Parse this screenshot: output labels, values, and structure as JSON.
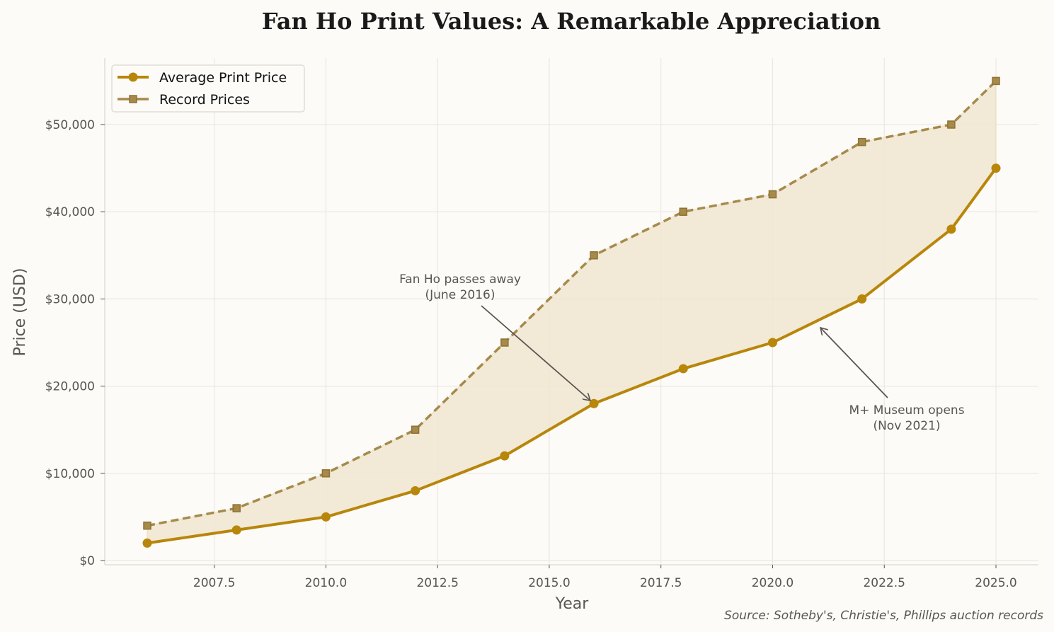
{
  "chart_data": {
    "type": "line",
    "title": "Fan Ho Print Values: A Remarkable Appreciation",
    "xlabel": "Year",
    "ylabel": "Price (USD)",
    "x": [
      2006,
      2008,
      2010,
      2012,
      2014,
      2016,
      2018,
      2020,
      2022,
      2024,
      2025
    ],
    "series": [
      {
        "name": "Average Print Price",
        "values": [
          2000,
          3500,
          5000,
          8000,
          12000,
          18000,
          22000,
          25000,
          30000,
          38000,
          45000
        ],
        "color": "#b8860b",
        "style": "solid",
        "marker": "circle"
      },
      {
        "name": "Record Prices",
        "values": [
          4000,
          6000,
          10000,
          15000,
          25000,
          35000,
          40000,
          42000,
          48000,
          50000,
          55000
        ],
        "color": "#a68a4b",
        "style": "dashed",
        "marker": "square"
      }
    ],
    "fill_between": {
      "color": "#f0e6d0",
      "between": [
        "Average Print Price",
        "Record Prices"
      ]
    },
    "xticks": [
      2007.5,
      2010.0,
      2012.5,
      2015.0,
      2017.5,
      2020.0,
      2022.5,
      2025.0
    ],
    "xtick_labels": [
      "2007.5",
      "2010.0",
      "2012.5",
      "2015.0",
      "2017.5",
      "2020.0",
      "2022.5",
      "2025.0"
    ],
    "yticks": [
      0,
      10000,
      20000,
      30000,
      40000,
      50000
    ],
    "ytick_labels": [
      "$0",
      "$10,000",
      "$20,000",
      "$30,000",
      "$40,000",
      "$50,000"
    ],
    "xlim": [
      2005.05,
      2025.95
    ],
    "ylim": [
      -500,
      57700
    ],
    "grid": true,
    "legend_position": "upper left",
    "annotations": [
      {
        "text": [
          "Fan Ho passes away",
          "(June 2016)"
        ],
        "xy": [
          2016,
          18000
        ],
        "xytext": [
          2013,
          31500
        ]
      },
      {
        "text": [
          "M+ Museum opens",
          "(Nov 2021)"
        ],
        "xy": [
          2021,
          27000
        ],
        "xytext": [
          2023,
          16500
        ]
      }
    ],
    "source": "Source: Sotheby's, Christie's, Phillips auction records"
  }
}
